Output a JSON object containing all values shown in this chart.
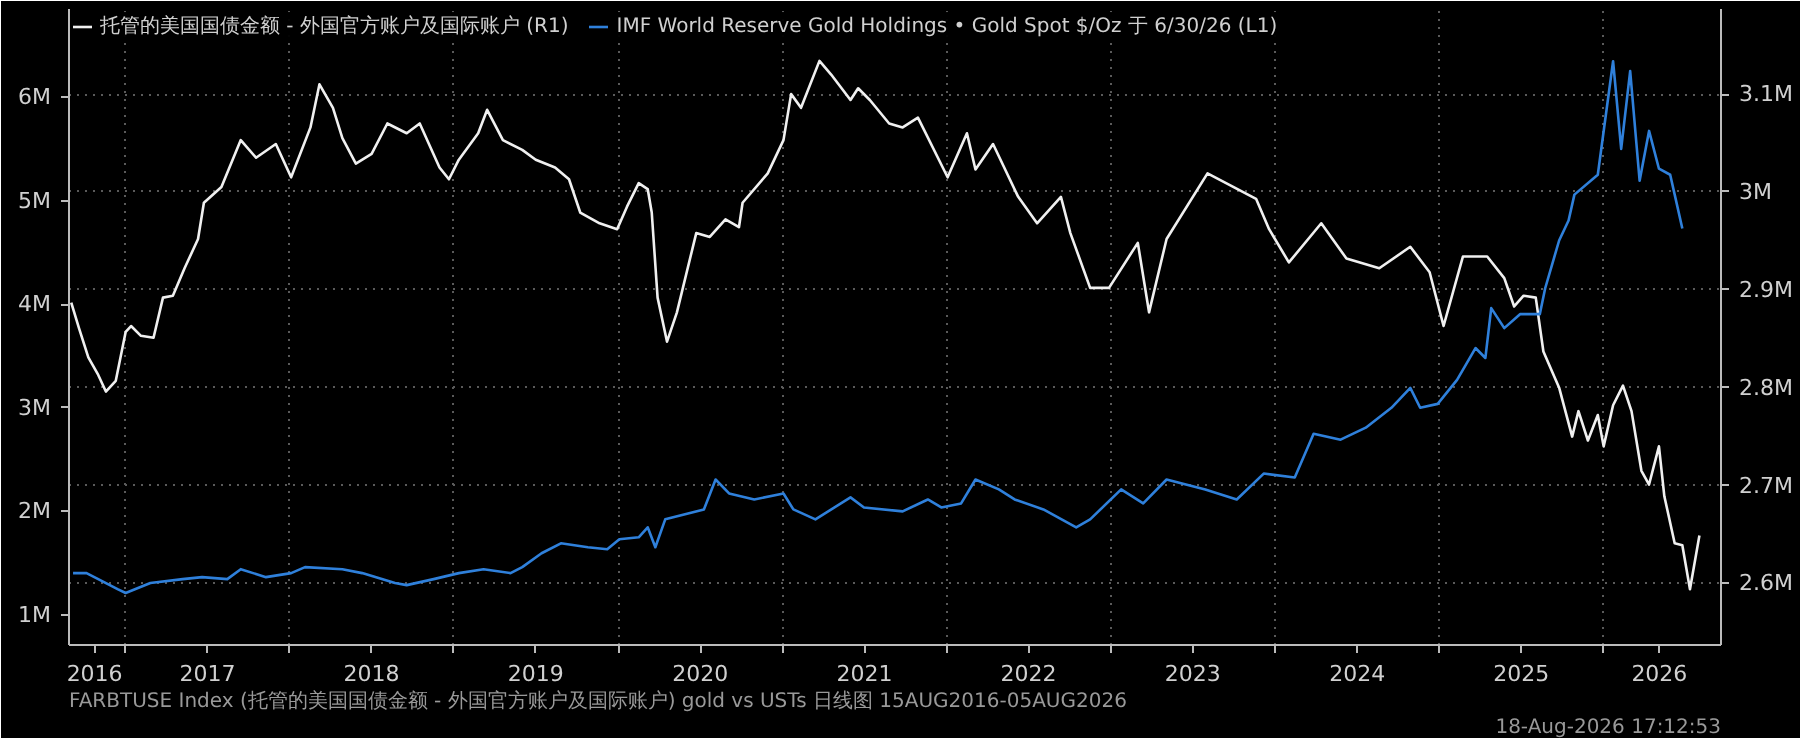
{
  "chart_data": {
    "type": "line",
    "xlim": [
      "2016-08-28",
      "2026-09-19"
    ],
    "xticks": [
      {
        "value": "2016-10-24",
        "label": "2016"
      },
      {
        "value": "2017-01-01",
        "label": null
      },
      {
        "value": "2017-07-02",
        "label": "2017"
      },
      {
        "value": "2018-01-01",
        "label": null
      },
      {
        "value": "2018-07-02",
        "label": "2018"
      },
      {
        "value": "2019-01-01",
        "label": null
      },
      {
        "value": "2019-07-02",
        "label": "2019"
      },
      {
        "value": "2020-01-01",
        "label": null
      },
      {
        "value": "2020-07-02",
        "label": "2020"
      },
      {
        "value": "2021-01-01",
        "label": null
      },
      {
        "value": "2021-07-02",
        "label": "2021"
      },
      {
        "value": "2022-01-01",
        "label": null
      },
      {
        "value": "2022-07-02",
        "label": "2022"
      },
      {
        "value": "2023-01-01",
        "label": null
      },
      {
        "value": "2023-07-02",
        "label": "2023"
      },
      {
        "value": "2024-01-01",
        "label": null
      },
      {
        "value": "2024-07-02",
        "label": "2024"
      },
      {
        "value": "2025-01-01",
        "label": null
      },
      {
        "value": "2025-07-02",
        "label": "2025"
      },
      {
        "value": "2026-01-01",
        "label": null
      },
      {
        "value": "2026-05-05",
        "label": "2026"
      }
    ],
    "ylim": [
      710000,
      6850000
    ],
    "yticks": [
      {
        "value": 1000000,
        "label": "1M"
      },
      {
        "value": 2000000,
        "label": "2M"
      },
      {
        "value": 3000000,
        "label": "3M"
      },
      {
        "value": 4000000,
        "label": "4M"
      },
      {
        "value": 5000000,
        "label": "5M"
      },
      {
        "value": 6000000,
        "label": "6M"
      }
    ],
    "y2lim": [
      2537000,
      3187000
    ],
    "y2ticks": [
      {
        "value": 2600000,
        "label": "2.6M"
      },
      {
        "value": 2700000,
        "label": "2.7M"
      },
      {
        "value": 2800000,
        "label": "2.8M"
      },
      {
        "value": 2900000,
        "label": "2.9M"
      },
      {
        "value": 3000000,
        "label": "3M"
      },
      {
        "value": 3100000,
        "label": "3.1M"
      }
    ],
    "grid": true,
    "legend": "top left",
    "line_style": "solid",
    "series": [
      {
        "name": "托管的美国国债金额 - 外国官方账户及国际账户 (R1)",
        "color": "#f0f0f0",
        "axis": "y2",
        "x": [
          "2016-09-02",
          "2016-09-19",
          "2016-10-10",
          "2016-11-01",
          "2016-11-18",
          "2016-12-10",
          "2017-01-01",
          "2017-01-13",
          "2017-02-04",
          "2017-03-04",
          "2017-03-25",
          "2017-04-16",
          "2017-05-12",
          "2017-06-11",
          "2017-06-24",
          "2017-08-02",
          "2017-09-14",
          "2017-10-18",
          "2017-12-01",
          "2018-01-04",
          "2018-02-16",
          "2018-03-08",
          "2018-04-07",
          "2018-04-28",
          "2018-05-28",
          "2018-07-02",
          "2018-08-06",
          "2018-09-18",
          "2018-10-17",
          "2018-11-30",
          "2018-12-21",
          "2019-01-12",
          "2019-02-24",
          "2019-03-16",
          "2019-04-20",
          "2019-06-02",
          "2019-07-02",
          "2019-08-14",
          "2019-09-14",
          "2019-10-09",
          "2019-11-21",
          "2019-12-30",
          "2020-01-21",
          "2020-02-16",
          "2020-03-07",
          "2020-03-16",
          "2020-03-29",
          "2020-04-19",
          "2020-05-11",
          "2020-06-23",
          "2020-07-23",
          "2020-08-27",
          "2020-09-26",
          "2020-10-04",
          "2020-11-29",
          "2021-01-03",
          "2021-01-20",
          "2021-02-11",
          "2021-03-24",
          "2021-04-19",
          "2021-06-01",
          "2021-06-18",
          "2021-07-14",
          "2021-08-26",
          "2021-09-25",
          "2021-10-29",
          "2022-01-03",
          "2022-02-15",
          "2022-03-06",
          "2022-04-14",
          "2022-06-09",
          "2022-07-21",
          "2022-09-12",
          "2022-10-03",
          "2022-11-16",
          "2022-12-28",
          "2023-03-02",
          "2023-03-27",
          "2023-05-05",
          "2023-08-04",
          "2023-11-20",
          "2023-12-19",
          "2024-02-01",
          "2024-04-13",
          "2024-06-08",
          "2024-08-20",
          "2024-10-28",
          "2024-12-10",
          "2025-01-10",
          "2025-02-22",
          "2025-04-17",
          "2025-05-25",
          "2025-06-16",
          "2025-07-07",
          "2025-08-03",
          "2025-08-20",
          "2025-09-24",
          "2025-10-23",
          "2025-11-06",
          "2025-11-27",
          "2025-12-19",
          "2026-01-01",
          "2026-01-22",
          "2026-02-13",
          "2026-03-04",
          "2026-03-26",
          "2026-04-12",
          "2026-05-04",
          "2026-05-16",
          "2026-06-08",
          "2026-06-25",
          "2026-07-12",
          "2026-08-02"
        ],
        "values": [
          2887000,
          2861000,
          2831000,
          2813000,
          2796000,
          2807000,
          2857000,
          2863000,
          2853000,
          2851000,
          2892000,
          2894000,
          2922000,
          2952000,
          2989000,
          3005000,
          3053000,
          3035000,
          3049000,
          3015000,
          3066000,
          3110000,
          3086000,
          3055000,
          3029000,
          3039000,
          3070000,
          3060000,
          3070000,
          3025000,
          3013000,
          3033000,
          3060000,
          3084000,
          3053000,
          3043000,
          3033000,
          3025000,
          3013000,
          2979000,
          2968000,
          2962000,
          2985000,
          3009000,
          3003000,
          2979000,
          2892000,
          2847000,
          2877000,
          2958000,
          2954000,
          2972000,
          2964000,
          2989000,
          3019000,
          3053000,
          3100000,
          3086000,
          3134000,
          3120000,
          3094000,
          3106000,
          3094000,
          3070000,
          3066000,
          3076000,
          3015000,
          3060000,
          3023000,
          3049000,
          2995000,
          2968000,
          2995000,
          2958000,
          2902000,
          2902000,
          2948000,
          2877000,
          2952000,
          3019000,
          2993000,
          2962000,
          2928000,
          2968000,
          2932000,
          2922000,
          2944000,
          2918000,
          2863000,
          2934000,
          2934000,
          2912000,
          2883000,
          2894000,
          2892000,
          2837000,
          2800000,
          2750000,
          2776000,
          2746000,
          2772000,
          2740000,
          2782000,
          2802000,
          2776000,
          2715000,
          2701000,
          2740000,
          2689000,
          2641000,
          2639000,
          2594000,
          2649000
        ]
      },
      {
        "name": "IMF World Reserve Gold Holdings • Gold Spot $/Oz 于 6/30/26 (L1)",
        "color": "#2f80db",
        "axis": "y",
        "x": [
          "2016-09-06",
          "2016-10-06",
          "2016-11-01",
          "2016-12-14",
          "2017-01-01",
          "2017-02-25",
          "2017-05-08",
          "2017-06-20",
          "2017-08-15",
          "2017-09-14",
          "2017-11-09",
          "2018-01-04",
          "2018-02-04",
          "2018-04-28",
          "2018-06-11",
          "2018-08-23",
          "2018-09-18",
          "2018-11-17",
          "2019-01-12",
          "2019-03-08",
          "2019-05-07",
          "2019-06-02",
          "2019-07-15",
          "2019-08-27",
          "2019-10-26",
          "2019-12-08",
          "2020-01-04",
          "2020-02-16",
          "2020-03-07",
          "2020-03-24",
          "2020-04-15",
          "2020-07-10",
          "2020-08-05",
          "2020-09-04",
          "2020-10-30",
          "2021-01-03",
          "2021-01-25",
          "2021-03-15",
          "2021-06-01",
          "2021-07-01",
          "2021-09-25",
          "2021-11-20",
          "2021-12-20",
          "2022-02-02",
          "2022-03-06",
          "2022-04-27",
          "2022-06-01",
          "2022-08-04",
          "2022-10-16",
          "2022-11-16",
          "2023-01-24",
          "2023-03-14",
          "2023-05-05",
          "2023-07-30",
          "2023-10-08",
          "2023-12-07",
          "2024-02-14",
          "2024-03-27",
          "2024-05-26",
          "2024-07-21",
          "2024-09-16",
          "2024-10-28",
          "2024-11-19",
          "2024-12-28",
          "2025-02-09",
          "2025-03-22",
          "2025-04-13",
          "2025-04-26",
          "2025-05-25",
          "2025-06-29",
          "2025-08-12",
          "2025-08-24",
          "2025-09-24",
          "2025-10-15",
          "2025-10-28",
          "2025-12-19",
          "2026-01-22",
          "2026-02-09",
          "2026-03-01",
          "2026-03-22",
          "2026-04-12",
          "2026-05-04",
          "2026-05-29",
          "2026-06-08",
          "2026-06-25"
        ],
        "values": [
          1404000,
          1404000,
          1346000,
          1250000,
          1212000,
          1308000,
          1346000,
          1365000,
          1346000,
          1442000,
          1365000,
          1404000,
          1462000,
          1442000,
          1404000,
          1308000,
          1288000,
          1346000,
          1404000,
          1442000,
          1404000,
          1462000,
          1596000,
          1692000,
          1654000,
          1635000,
          1731000,
          1750000,
          1846000,
          1654000,
          1923000,
          2019000,
          2308000,
          2173000,
          2115000,
          2173000,
          2019000,
          1923000,
          2135000,
          2038000,
          2000000,
          2115000,
          2038000,
          2077000,
          2308000,
          2212000,
          2115000,
          2019000,
          1846000,
          1923000,
          2212000,
          2077000,
          2308000,
          2212000,
          2115000,
          2365000,
          2327000,
          2750000,
          2692000,
          2808000,
          3000000,
          3192000,
          3000000,
          3038000,
          3269000,
          3577000,
          3481000,
          3962000,
          3769000,
          3904000,
          3904000,
          4154000,
          4615000,
          4808000,
          5058000,
          5250000,
          6346000,
          5500000,
          6250000,
          5192000,
          5673000,
          5308000,
          5250000,
          5058000,
          4731000
        ]
      }
    ],
    "annotations": [
      "FARBTUSE Index (托管的美国国债金额 - 外国官方账户及国际账户) gold vs USTs 日线图 15AUG2016-05AUG2026",
      "18-Aug-2026 17:12:53"
    ]
  }
}
